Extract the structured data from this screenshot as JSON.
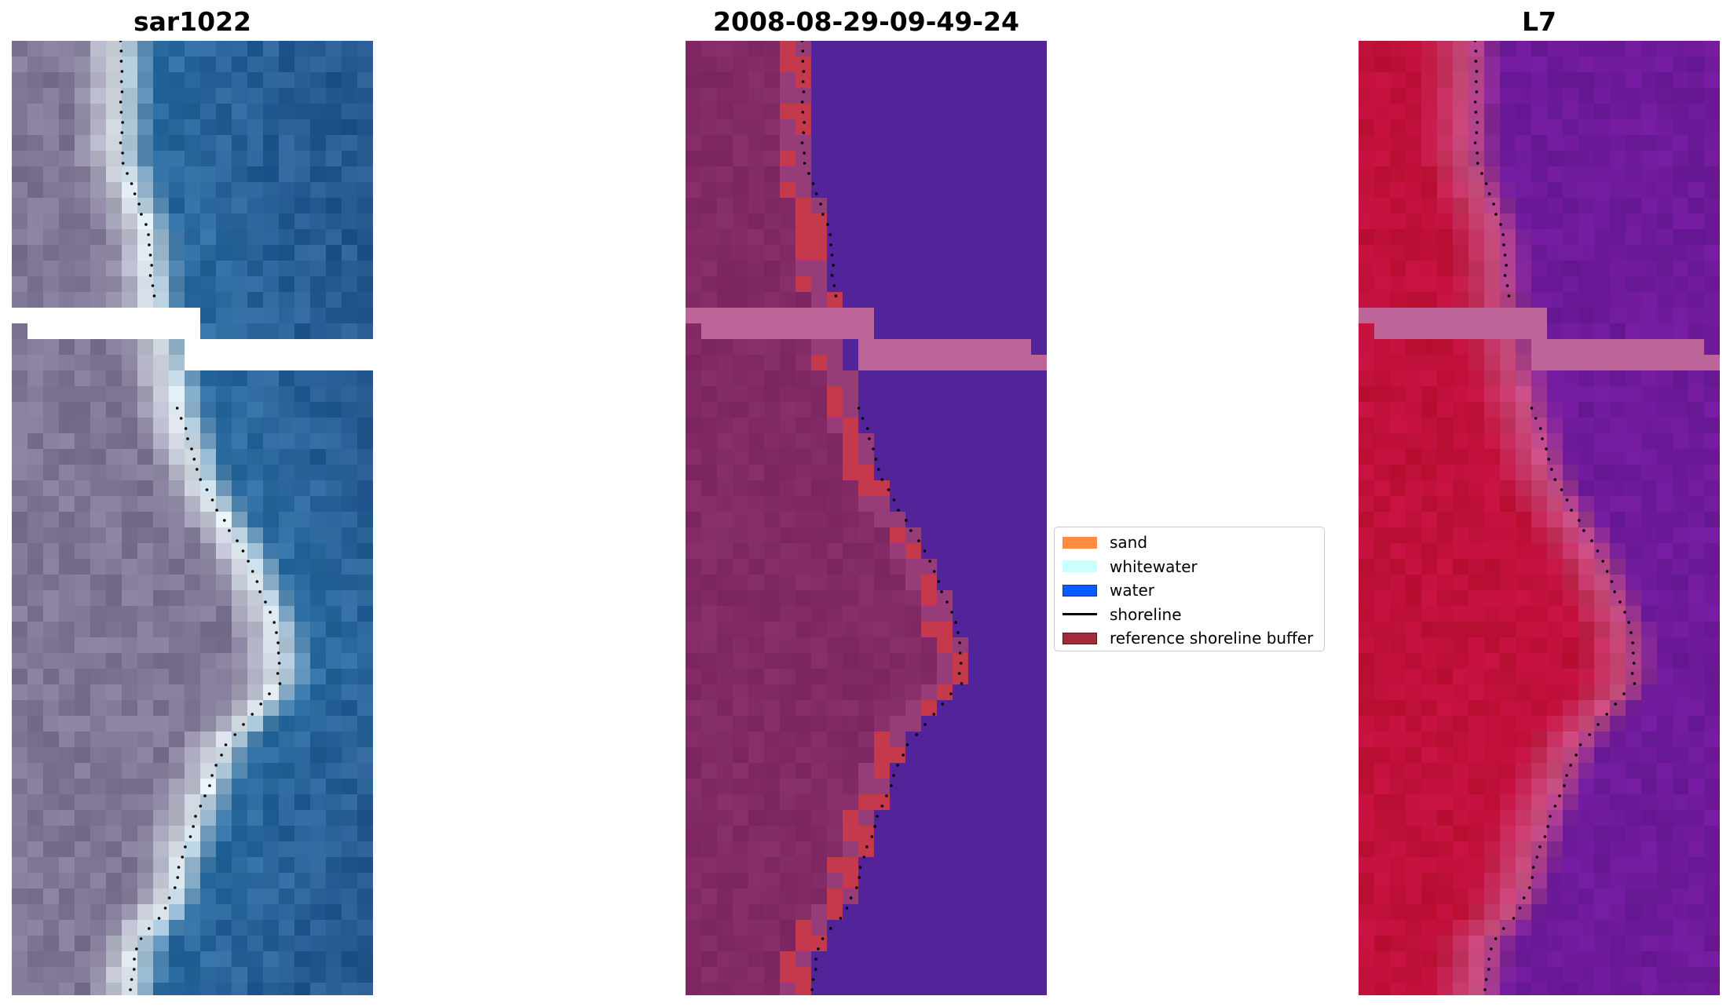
{
  "panels": [
    {
      "title": "sar1022",
      "icon": "rgb-satellite-image"
    },
    {
      "title": "2008-08-29-09-49-24",
      "icon": "classified-image"
    },
    {
      "title": "L7",
      "icon": "mndwi-index-image"
    }
  ],
  "legend": {
    "items": [
      {
        "label": "sand",
        "kind": "patch",
        "color": "#ff8c42"
      },
      {
        "label": "whitewater",
        "kind": "patch",
        "color": "#ccffff"
      },
      {
        "label": "water",
        "kind": "patch",
        "color": "#0a5cff"
      },
      {
        "label": "shoreline",
        "kind": "line",
        "color": "#000000"
      },
      {
        "label": "reference shoreline buffer",
        "kind": "patch",
        "color": "#a02c3a"
      }
    ]
  },
  "colors": {
    "ocean_rgb": "#2f6fa3",
    "land_rgb": "#8a7f9e",
    "classified_water": "#53239a",
    "classified_land": "#7c2460",
    "buffer": "#c43a4c",
    "mndwi_land": "#c0103a",
    "mndwi_water": "#6b1a9a",
    "nodata_rows": "#bd6598"
  }
}
